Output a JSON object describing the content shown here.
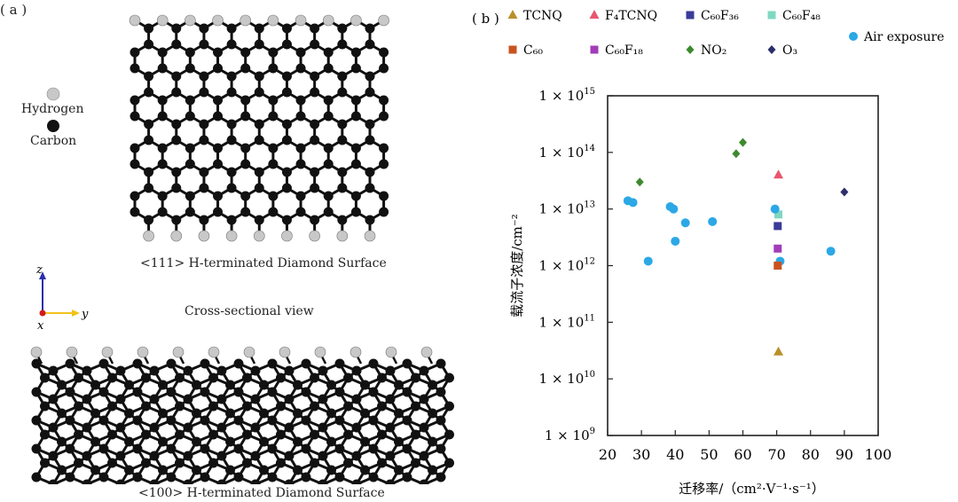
{
  "panel_a": {
    "label": "( a )",
    "legend": {
      "hydrogen": "Hydrogen",
      "carbon": "Carbon"
    },
    "caption_111": "<111> H-terminated Diamond Surface",
    "caption_100": "<100> H-terminated Diamond Surface",
    "cross_section": "Cross-sectional view",
    "axes": {
      "z": "z",
      "y": "y",
      "x": "x"
    },
    "colors": {
      "hydrogen": "#c8c8c8",
      "carbon": "#111111",
      "z_axis": "#2b2fa8",
      "y_axis": "#f2c21a",
      "origin": "#d11b1b"
    }
  },
  "panel_b": {
    "label": "( b )"
  },
  "chart_data": {
    "type": "scatter",
    "xlabel": "迁移率/（cm²·V⁻¹·s⁻¹）",
    "ylabel": "载流子浓度/cm⁻²",
    "xlim": [
      20,
      100
    ],
    "ylim_log10": [
      9,
      15
    ],
    "y_scale": "log",
    "x_ticks": [
      "20",
      "30",
      "40",
      "50",
      "60",
      "70",
      "80",
      "90",
      "100"
    ],
    "y_tick_exponents": [
      "9",
      "10",
      "11",
      "12",
      "13",
      "14",
      "15"
    ],
    "grid": false,
    "legend_position": "top",
    "series": [
      {
        "name": "TCNQ",
        "marker": "triangle",
        "color": "#b8912a",
        "points": [
          [
            70.5,
            30000000000.0
          ]
        ]
      },
      {
        "name": "F₄TCNQ",
        "marker": "triangle",
        "color": "#e8566e",
        "points": [
          [
            70.5,
            40000000000000.0
          ]
        ]
      },
      {
        "name": "C₆₀F₃₆",
        "marker": "square",
        "color": "#3a3a9a",
        "points": [
          [
            70.3,
            5000000000000.0
          ]
        ]
      },
      {
        "name": "C₆₀F₄₈",
        "marker": "square",
        "color": "#7fd8c0",
        "points": [
          [
            70.5,
            8000000000000.0
          ]
        ]
      },
      {
        "name": "Air exposure",
        "marker": "circle",
        "color": "#2ca8e6",
        "points": [
          [
            26,
            14000000000000.0
          ],
          [
            27.5,
            13000000000000.0
          ],
          [
            32,
            1200000000000.0
          ],
          [
            38.5,
            11000000000000.0
          ],
          [
            39.5,
            10000000000000.0
          ],
          [
            40,
            2700000000000.0
          ],
          [
            43,
            5700000000000.0
          ],
          [
            51,
            6000000000000.0
          ],
          [
            69.5,
            10000000000000.0
          ],
          [
            71,
            1200000000000.0
          ],
          [
            86,
            1800000000000.0
          ]
        ]
      },
      {
        "name": "C₆₀",
        "marker": "square",
        "color": "#c9531f",
        "points": [
          [
            70.3,
            1000000000000.0
          ]
        ]
      },
      {
        "name": "C₆₀F₁₈",
        "marker": "square",
        "color": "#a23cb8",
        "points": [
          [
            70.3,
            2000000000000.0
          ]
        ]
      },
      {
        "name": "NO₂",
        "marker": "diamond",
        "color": "#3d8a2e",
        "points": [
          [
            29.5,
            30000000000000.0
          ],
          [
            58,
            95000000000000.0
          ],
          [
            60,
            150000000000000.0
          ]
        ]
      },
      {
        "name": "O₃",
        "marker": "diamond",
        "color": "#2b2f6b",
        "points": [
          [
            90,
            20000000000000.0
          ]
        ]
      }
    ]
  }
}
